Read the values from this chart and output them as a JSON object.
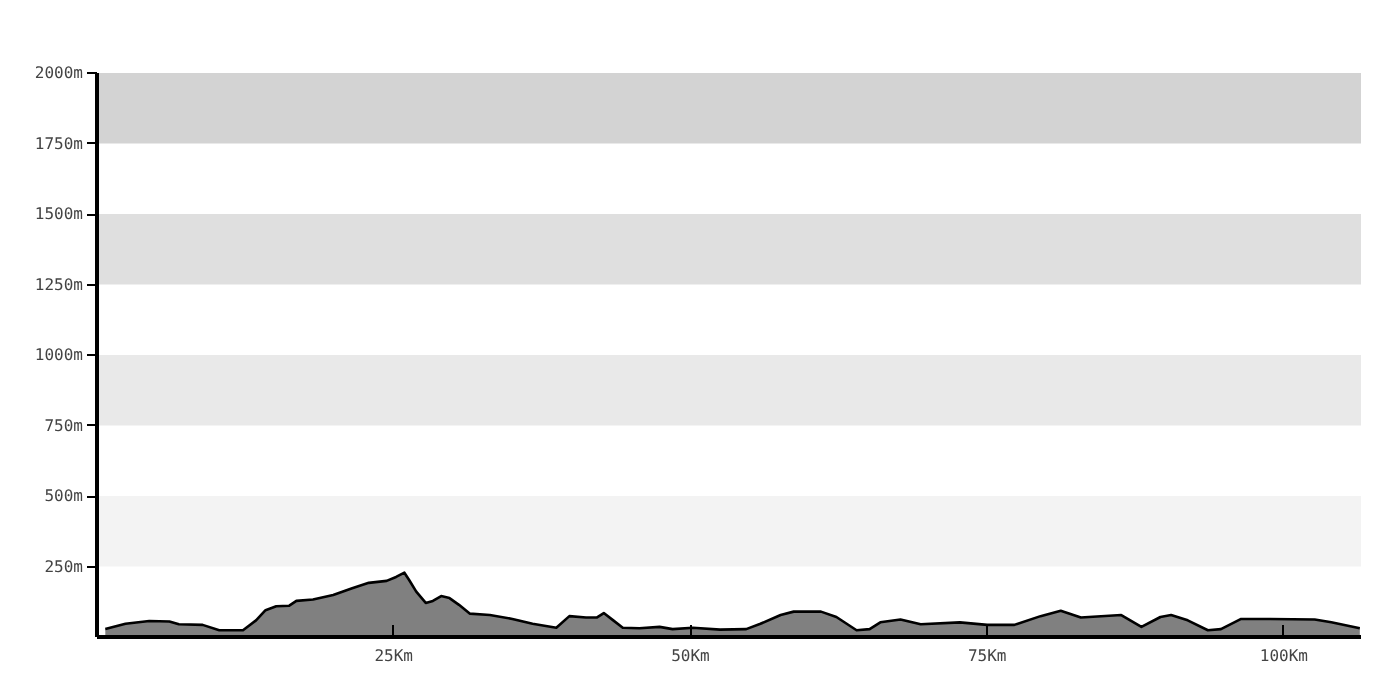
{
  "chart_data": {
    "type": "area",
    "x": [
      0.7,
      2.4,
      4.4,
      6.1,
      6.9,
      8.9,
      10.3,
      12.3,
      13.4,
      14.2,
      15.1,
      16.2,
      16.8,
      18.2,
      19.9,
      21.5,
      22.9,
      24.4,
      25.2,
      25.9,
      26.3,
      26.9,
      27.7,
      28.3,
      29.0,
      29.7,
      30.5,
      31.4,
      33.1,
      35.0,
      36.7,
      38.7,
      39.8,
      41.2,
      42.1,
      42.7,
      43.5,
      44.3,
      45.7,
      47.4,
      48.5,
      50.2,
      52.5,
      54.7,
      55.9,
      57.6,
      58.7,
      61.0,
      62.3,
      64.0,
      65.1,
      66.0,
      67.7,
      69.4,
      72.7,
      75.0,
      77.3,
      79.5,
      81.2,
      82.9,
      86.3,
      88.0,
      89.6,
      90.5,
      91.9,
      93.6,
      94.7,
      96.4,
      98.1,
      102.6,
      104.0,
      105.4,
      106.4
    ],
    "series": [
      {
        "color": "#808080",
        "values": [
          28,
          47,
          57,
          55,
          45,
          43,
          24,
          24,
          59,
          95,
          109,
          111,
          128,
          133,
          149,
          173,
          192,
          199,
          213,
          228,
          202,
          161,
          121,
          128,
          145,
          138,
          114,
          83,
          78,
          64,
          47,
          33,
          74,
          69,
          69,
          85,
          59,
          33,
          31,
          36,
          28,
          33,
          26,
          28,
          47,
          78,
          90,
          90,
          71,
          24,
          28,
          52,
          62,
          45,
          52,
          43,
          43,
          74,
          93,
          69,
          78,
          36,
          71,
          78,
          59,
          24,
          28,
          64,
          64,
          62,
          52,
          40,
          31
        ]
      }
    ],
    "xlim": [
      0,
      106.5
    ],
    "ylim": [
      0,
      2000
    ],
    "xticks": [
      {
        "value": 25,
        "label": "25Km"
      },
      {
        "value": 50,
        "label": "50Km"
      },
      {
        "value": 75,
        "label": "75Km"
      },
      {
        "value": 100,
        "label": "100Km"
      }
    ],
    "yticks": [
      {
        "value": 250,
        "label": "250m"
      },
      {
        "value": 500,
        "label": "500m"
      },
      {
        "value": 750,
        "label": "750m"
      },
      {
        "value": 1000,
        "label": "1000m"
      },
      {
        "value": 1250,
        "label": "1250m"
      },
      {
        "value": 1500,
        "label": "1500m"
      },
      {
        "value": 1750,
        "label": "1750m"
      },
      {
        "value": 2000,
        "label": "2000m"
      }
    ],
    "bands": [
      {
        "axis": "y",
        "from": 250,
        "to": 500,
        "color": "#f3f3f3"
      },
      {
        "axis": "y",
        "from": 750,
        "to": 1000,
        "color": "#e9e9e9"
      },
      {
        "axis": "y",
        "from": 1250,
        "to": 1500,
        "color": "#dfdfdf"
      },
      {
        "axis": "y",
        "from": 1750,
        "to": 2000,
        "color": "#d3d3d3"
      }
    ],
    "grid": false
  }
}
